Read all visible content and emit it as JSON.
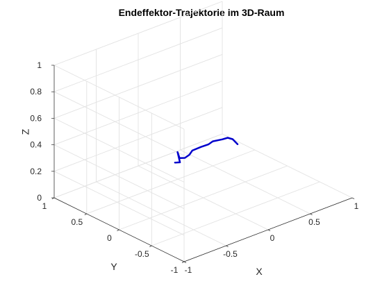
{
  "chart_data": {
    "type": "line",
    "projection": "3d",
    "title": "Endeffektor-Trajektorie im 3D-Raum",
    "xlabel": "X",
    "ylabel": "Y",
    "zlabel": "Z",
    "xlim": [
      -1,
      1
    ],
    "ylim": [
      -1,
      1
    ],
    "zlim": [
      0,
      1
    ],
    "x_ticks": [
      -1,
      -0.5,
      0,
      0.5,
      1
    ],
    "y_ticks": [
      -1,
      -0.5,
      0,
      0.5,
      1
    ],
    "z_ticks": [
      0,
      0.2,
      0.4,
      0.6,
      0.8,
      1
    ],
    "x_tick_labels": [
      "-1",
      "-0.5",
      "0",
      "0.5",
      "1"
    ],
    "y_tick_labels": [
      "-1",
      "-0.5",
      "0",
      "0.5",
      "1"
    ],
    "z_tick_labels": [
      "0",
      "0.2",
      "0.4",
      "0.6",
      "0.8",
      "1"
    ],
    "grid": true,
    "box": false,
    "series": [
      {
        "color": "#0000cc",
        "line_width": 2.5,
        "points": [
          {
            "x": -0.264,
            "y": 0.093,
            "z": 0.307
          },
          {
            "x": -0.202,
            "y": 0.096,
            "z": 0.293
          },
          {
            "x": -0.174,
            "y": 0.169,
            "z": 0.346
          },
          {
            "x": -0.17,
            "y": 0.144,
            "z": 0.306
          },
          {
            "x": -0.119,
            "y": 0.128,
            "z": 0.299
          },
          {
            "x": -0.079,
            "y": 0.111,
            "z": 0.317
          },
          {
            "x": -0.047,
            "y": 0.107,
            "z": 0.342
          },
          {
            "x": 0.037,
            "y": 0.082,
            "z": 0.355
          },
          {
            "x": 0.101,
            "y": 0.052,
            "z": 0.366
          },
          {
            "x": 0.151,
            "y": 0.048,
            "z": 0.378
          },
          {
            "x": 0.231,
            "y": 0.006,
            "z": 0.384
          },
          {
            "x": 0.276,
            "y": -0.02,
            "z": 0.391
          },
          {
            "x": 0.314,
            "y": -0.047,
            "z": 0.378
          },
          {
            "x": 0.346,
            "y": -0.082,
            "z": 0.341
          }
        ]
      }
    ]
  }
}
